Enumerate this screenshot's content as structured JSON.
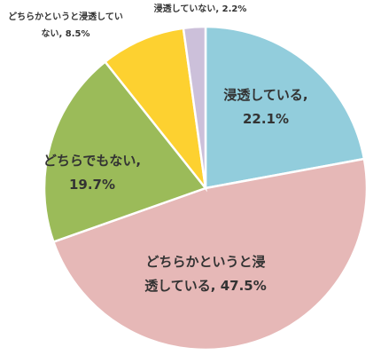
{
  "chart_data": {
    "type": "pie",
    "title": "",
    "slices": [
      {
        "category": "浸透している",
        "value": 22.1,
        "label_lines": [
          "浸透している,",
          "22.1%"
        ],
        "color": "#92cddc"
      },
      {
        "category": "どちらかというと浸透している",
        "value": 47.5,
        "label_lines": [
          "どちらかというと浸",
          "透している, 47.5%"
        ],
        "color": "#e6b8b7"
      },
      {
        "category": "どちらでもない",
        "value": 19.7,
        "label_lines": [
          "どちらでもない,",
          "19.7%"
        ],
        "color": "#9bbb59"
      },
      {
        "category": "どちらかというと浸透していない",
        "value": 8.5,
        "label_lines": [
          "どちらかというと浸透してい",
          "ない, 8.5%"
        ],
        "color": "#fdd130"
      },
      {
        "category": "浸透していない",
        "value": 2.2,
        "label_lines": [
          "浸透していない, 2.2%"
        ],
        "color": "#ccc0da"
      }
    ],
    "start_angle_deg": 0,
    "direction": "clockwise",
    "legend": "none"
  }
}
